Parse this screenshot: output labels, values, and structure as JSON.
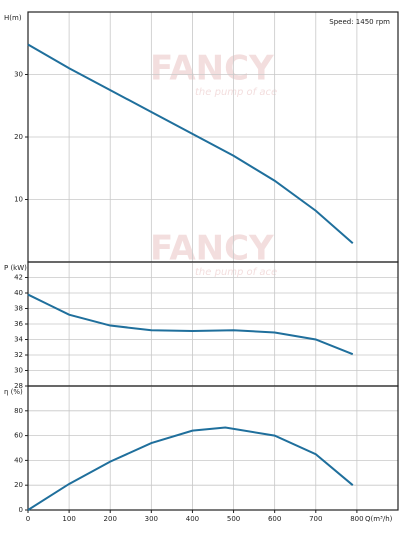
{
  "watermark": "FANCY",
  "watermark_tagline": "the pump of ace",
  "chart_data": [
    {
      "type": "line",
      "ylabel": "H(m)",
      "annotation": "Speed: 1450 rpm",
      "color": "#1f6f9c",
      "grid": true,
      "x": [
        0,
        100,
        200,
        300,
        400,
        500,
        600,
        700,
        790
      ],
      "values": [
        34.8,
        31,
        27.5,
        24,
        20.5,
        17,
        13,
        8.2,
        3
      ],
      "xlim": [
        0,
        900
      ],
      "ylim": [
        0,
        40
      ],
      "yticks": [
        10,
        20,
        30
      ]
    },
    {
      "type": "line",
      "ylabel": "P (kW)",
      "color": "#1f6f9c",
      "grid": true,
      "x": [
        0,
        50,
        100,
        200,
        300,
        400,
        500,
        600,
        700,
        790
      ],
      "values": [
        39.8,
        38.5,
        37.2,
        35.8,
        35.2,
        35.1,
        35.2,
        34.9,
        34,
        32.1
      ],
      "xlim": [
        0,
        900
      ],
      "ylim": [
        28,
        44
      ],
      "yticks": [
        28,
        30,
        32,
        34,
        36,
        38,
        40,
        42
      ]
    },
    {
      "type": "line",
      "ylabel": "η (%)",
      "xlabel": "Q(m³/h)",
      "color": "#1f6f9c",
      "grid": true,
      "x": [
        0,
        100,
        200,
        300,
        400,
        480,
        600,
        700,
        790
      ],
      "values": [
        0,
        21,
        39,
        54,
        64,
        66.5,
        60,
        45,
        20
      ],
      "xlim": [
        0,
        900
      ],
      "ylim": [
        0,
        100
      ],
      "yticks": [
        0,
        20,
        40,
        60,
        80
      ],
      "xticks": [
        0,
        100,
        200,
        300,
        400,
        500,
        600,
        700,
        800
      ]
    }
  ]
}
